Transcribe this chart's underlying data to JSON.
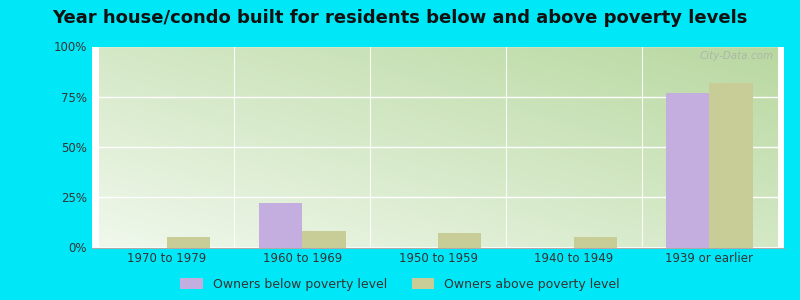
{
  "title": "Year house/condo built for residents below and above poverty levels",
  "categories": [
    "1970 to 1979",
    "1960 to 1969",
    "1950 to 1959",
    "1940 to 1949",
    "1939 or earlier"
  ],
  "below_poverty": [
    0.0,
    22.0,
    0.0,
    0.0,
    77.0
  ],
  "above_poverty": [
    5.0,
    8.0,
    7.0,
    5.0,
    82.0
  ],
  "below_color": "#c4aee0",
  "above_color": "#c8cc96",
  "ylim": [
    0,
    100
  ],
  "yticks": [
    0,
    25,
    50,
    75,
    100
  ],
  "ytick_labels": [
    "0%",
    "25%",
    "50%",
    "75%",
    "100%"
  ],
  "bg_bottom_left": "#b8d8a0",
  "bg_top_right": "#f0f8ec",
  "outer_background": "#00e8f8",
  "title_fontsize": 13,
  "legend_below_label": "Owners below poverty level",
  "legend_above_label": "Owners above poverty level",
  "bar_width": 0.32,
  "watermark": "City-Data.com",
  "tick_color": "#777777",
  "label_color": "#333333"
}
